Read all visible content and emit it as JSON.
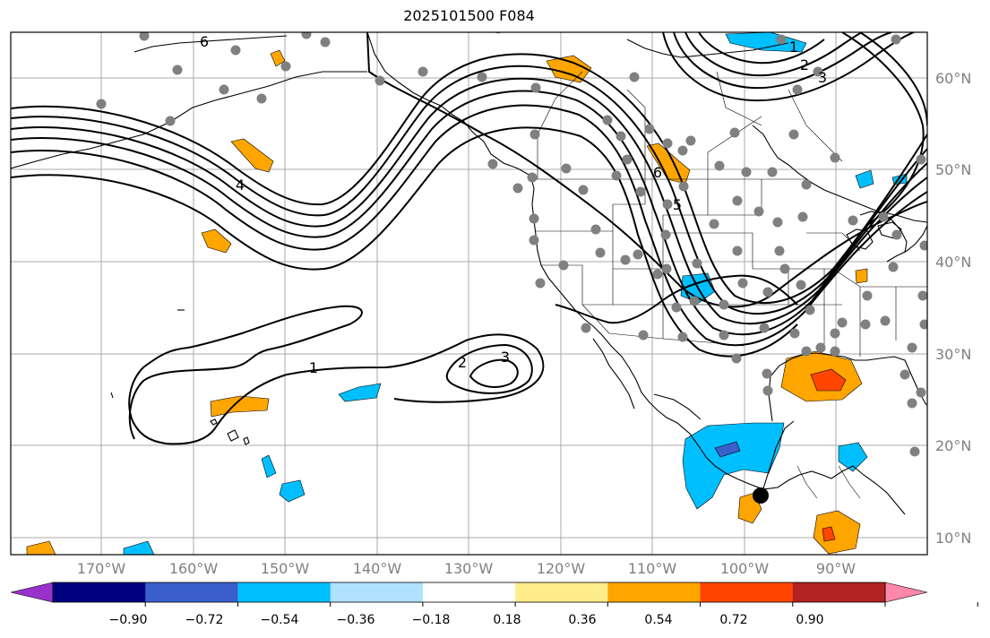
{
  "title": "2025101500 F084",
  "map": {
    "lat_labels": [
      "60°N",
      "50°N",
      "40°N",
      "30°N",
      "20°N",
      "10°N"
    ],
    "lon_labels": [
      "170°W",
      "160°W",
      "150°W",
      "140°W",
      "130°W",
      "120°W",
      "110°W",
      "100°W",
      "90°W"
    ],
    "contour_labels": [
      "6",
      "4",
      "1",
      "2",
      "3",
      "1",
      "2",
      "3",
      "6",
      "5"
    ],
    "contour_color": "#000000",
    "station_color": "#808080",
    "storm_marker_color": "#000000"
  },
  "colorbar": {
    "ticks": [
      "−0.90",
      "−0.72",
      "−0.54",
      "−0.36",
      "−0.18",
      "0.18",
      "0.36",
      "0.54",
      "0.72",
      "0.90"
    ],
    "colors": [
      "#9932CC",
      "#000080",
      "#3A5FCD",
      "#00BFFF",
      "#B0E2FF",
      "#FFFFFF",
      "#FFEC8B",
      "#FFA500",
      "#FF4500",
      "#B22222",
      "#FF88AA"
    ]
  }
}
